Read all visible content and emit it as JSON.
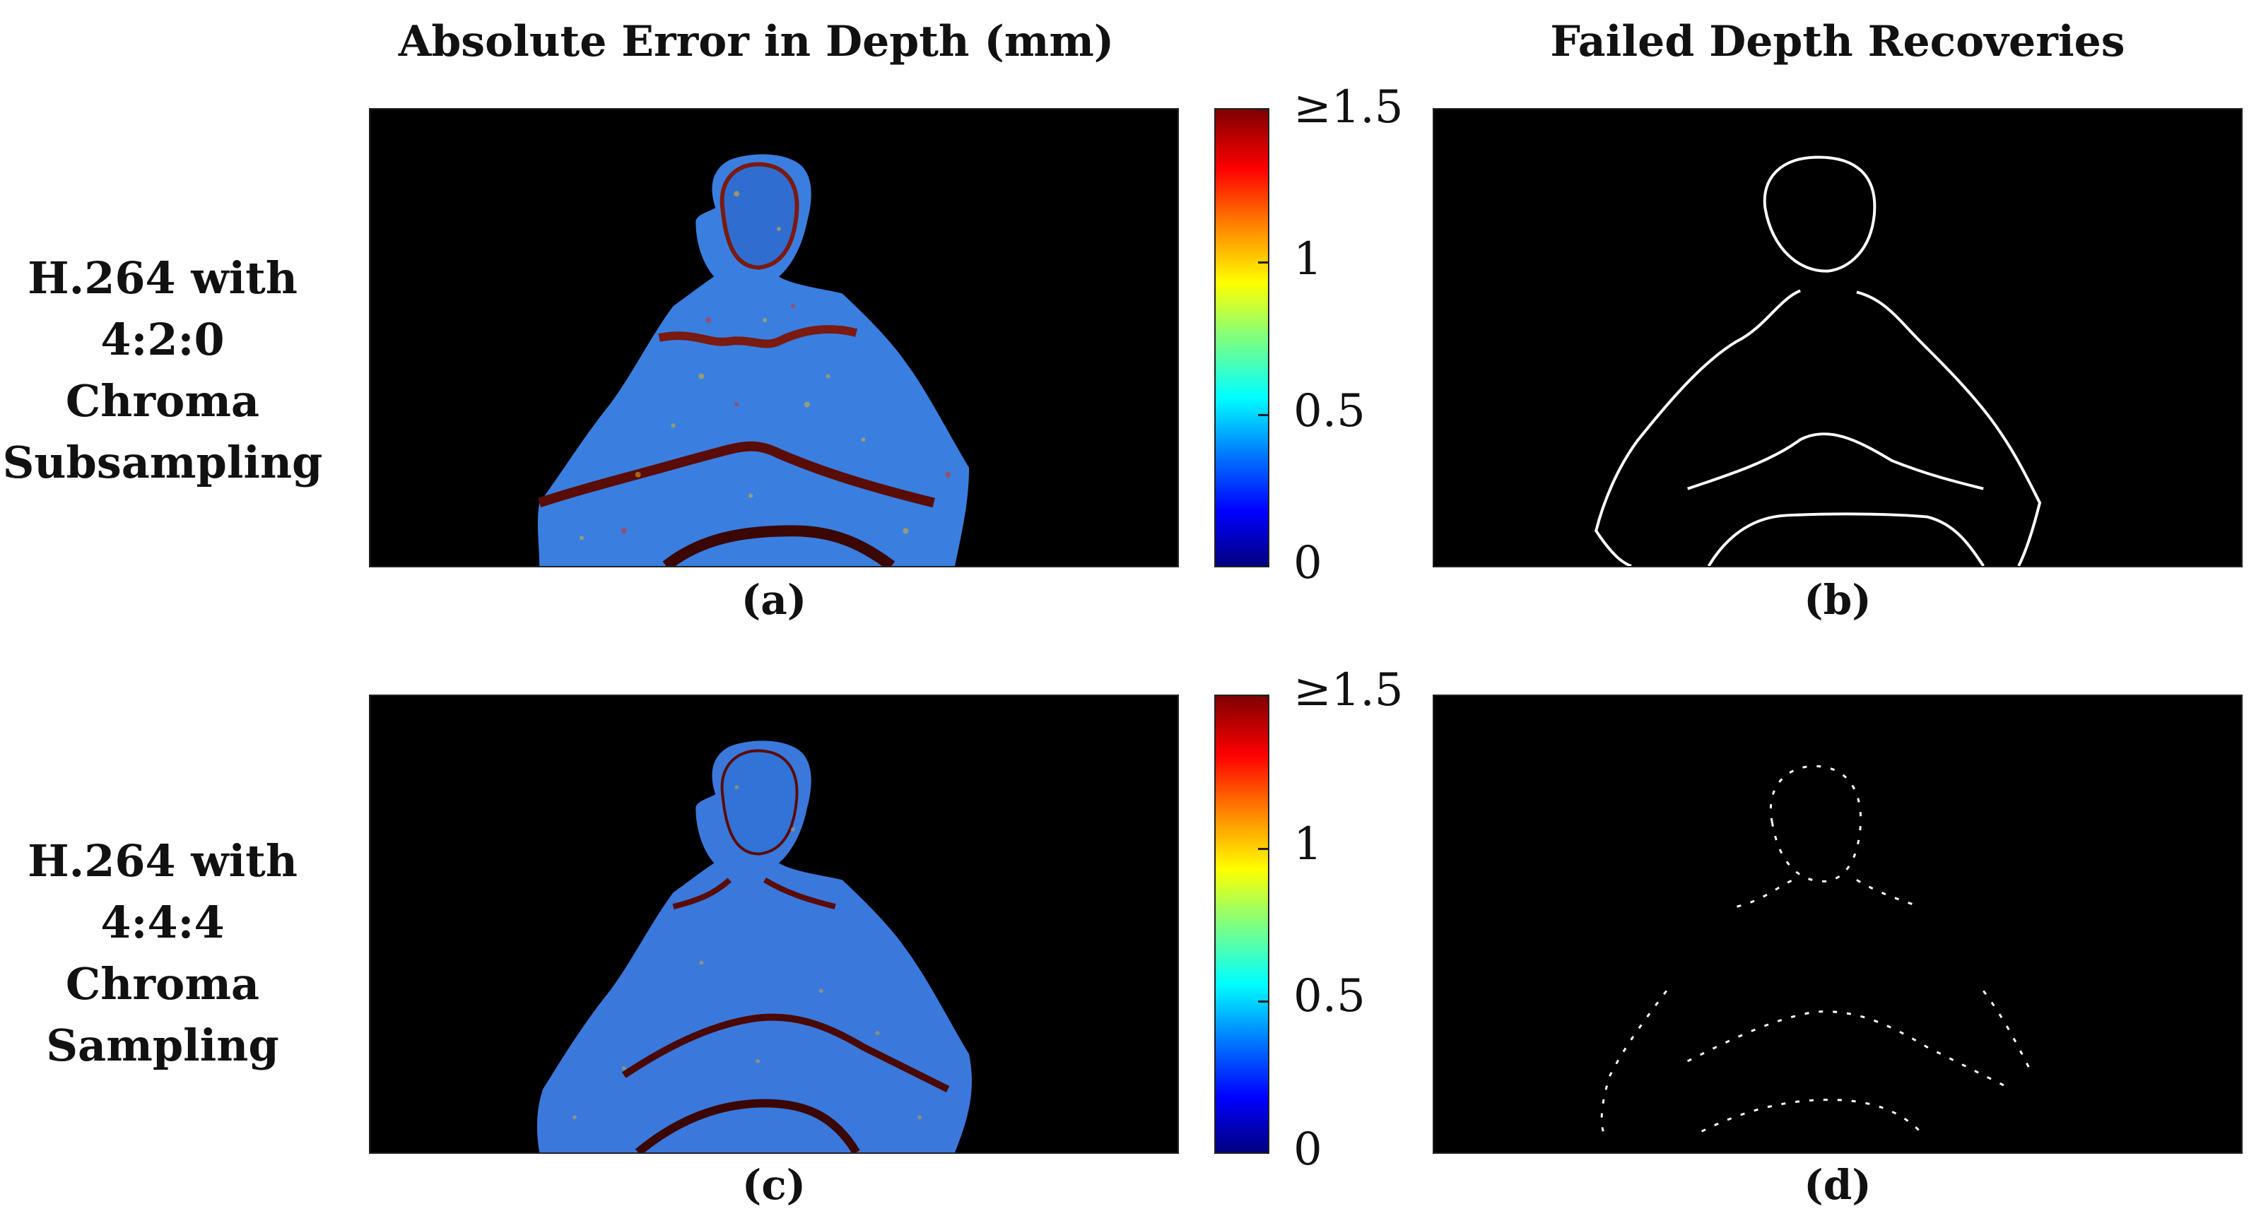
{
  "titles": {
    "left": "Absolute Error in Depth (mm)",
    "right": "Failed Depth Recoveries"
  },
  "rows": [
    {
      "label_lines": [
        "H.264 with",
        "4:2:0 Chroma",
        "Subsampling"
      ]
    },
    {
      "label_lines": [
        "H.264 with",
        "4:4:4 Chroma",
        "Sampling"
      ]
    }
  ],
  "captions": {
    "a": "(a)",
    "b": "(b)",
    "c": "(c)",
    "d": "(d)"
  },
  "colorbar": {
    "colormap": "jet",
    "ticks": [
      "≥1.5",
      "1",
      "0.5",
      "0"
    ],
    "range": [
      0,
      1.5
    ],
    "colors": [
      "#00007f",
      "#0000ff",
      "#007fff",
      "#00ffff",
      "#7fff7f",
      "#ffff00",
      "#ff7f00",
      "#ff0000",
      "#7f0000"
    ]
  },
  "colors": {
    "panel_background": "#000000",
    "error_body": "#3a7fe0",
    "error_edge": "#c0301a",
    "failed_edge": "#ffffff"
  }
}
